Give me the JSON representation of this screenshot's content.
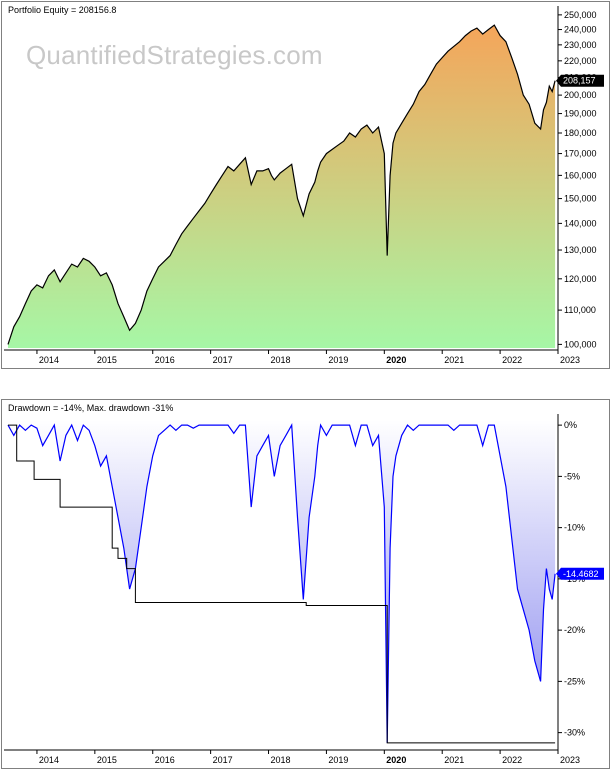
{
  "watermark": "QuantifiedStrategies.com",
  "colors": {
    "equity_line": "#000000",
    "equity_fill_top": "#f5a55a",
    "equity_fill_bottom": "#a6f7a6",
    "drawdown_line": "#0000ff",
    "drawdown_fill_top": "#ffffff",
    "drawdown_fill_bottom": "#8888ee",
    "max_dd_line": "#000000",
    "value_box_equity": "#000000",
    "value_box_dd": "#0000ff"
  },
  "chart_data": [
    {
      "type": "area",
      "title": "Portfolio Equity = 208156.8",
      "last_value_label": "208,157",
      "y_tick_labels": [
        "100,000",
        "110,000",
        "120,000",
        "130,000",
        "140,000",
        "150,000",
        "160,000",
        "170,000",
        "180,000",
        "190,000",
        "200,000",
        "210,000",
        "220,000",
        "230,000",
        "240,000",
        "250,000"
      ],
      "y_ticks": [
        100000,
        110000,
        120000,
        130000,
        140000,
        150000,
        160000,
        170000,
        180000,
        190000,
        200000,
        210000,
        220000,
        230000,
        240000,
        250000
      ],
      "x_tick_labels": [
        "2014",
        "2015",
        "2016",
        "2017",
        "2018",
        "2019",
        "2020",
        "2021",
        "2022",
        "2023"
      ],
      "x_ticks": [
        2014,
        2015,
        2016,
        2017,
        2018,
        2019,
        2020,
        2021,
        2022,
        2023
      ],
      "bold_x_label": "2020",
      "xlim": [
        2013.5,
        2023.0
      ],
      "ylim": [
        99000,
        252000
      ],
      "y_scale": "log",
      "series": [
        {
          "x": [
            2013.5,
            2013.6,
            2013.7,
            2013.8,
            2013.9,
            2014.0,
            2014.1,
            2014.2,
            2014.3,
            2014.4,
            2014.5,
            2014.6,
            2014.7,
            2014.8,
            2014.9,
            2015.0,
            2015.1,
            2015.2,
            2015.3,
            2015.4,
            2015.5,
            2015.6,
            2015.7,
            2015.8,
            2015.9,
            2016.0,
            2016.1,
            2016.2,
            2016.3,
            2016.4,
            2016.5,
            2016.6,
            2016.7,
            2016.8,
            2016.9,
            2017.0,
            2017.1,
            2017.2,
            2017.3,
            2017.4,
            2017.5,
            2017.6,
            2017.7,
            2017.8,
            2017.9,
            2018.0,
            2018.05,
            2018.1,
            2018.2,
            2018.3,
            2018.4,
            2018.5,
            2018.6,
            2018.7,
            2018.8,
            2018.85,
            2018.9,
            2019.0,
            2019.1,
            2019.2,
            2019.3,
            2019.4,
            2019.5,
            2019.6,
            2019.7,
            2019.8,
            2019.9,
            2020.0,
            2020.05,
            2020.1,
            2020.15,
            2020.2,
            2020.3,
            2020.4,
            2020.5,
            2020.6,
            2020.7,
            2020.8,
            2020.9,
            2021.0,
            2021.1,
            2021.2,
            2021.3,
            2021.4,
            2021.5,
            2021.6,
            2021.7,
            2021.8,
            2021.9,
            2022.0,
            2022.1,
            2022.2,
            2022.3,
            2022.4,
            2022.5,
            2022.6,
            2022.7,
            2022.75,
            2022.8,
            2022.85,
            2022.9,
            2022.95
          ],
          "y": [
            100000,
            105000,
            108000,
            112000,
            116000,
            118000,
            117000,
            121000,
            123000,
            119000,
            122000,
            125000,
            124000,
            127000,
            126000,
            124000,
            121000,
            122000,
            118000,
            112000,
            108000,
            104000,
            106000,
            110000,
            116000,
            120000,
            124000,
            126000,
            128000,
            132000,
            136000,
            139000,
            142000,
            145000,
            148000,
            152000,
            156000,
            160000,
            164000,
            162000,
            165000,
            168000,
            156000,
            162000,
            162000,
            163000,
            160000,
            158000,
            161000,
            163000,
            165000,
            150000,
            143000,
            152000,
            157000,
            162000,
            166000,
            170000,
            172000,
            174000,
            176000,
            180000,
            178000,
            182000,
            184000,
            180000,
            183000,
            170000,
            128000,
            160000,
            175000,
            180000,
            185000,
            190000,
            195000,
            202000,
            206000,
            212000,
            218000,
            222000,
            226000,
            229000,
            232000,
            236000,
            239000,
            241000,
            237000,
            240000,
            243000,
            236000,
            232000,
            222000,
            212000,
            200000,
            195000,
            185000,
            182000,
            192000,
            196000,
            205000,
            202000,
            208157
          ]
        }
      ]
    },
    {
      "type": "area",
      "title": "Drawdown = -14%, Max. drawdown -31%",
      "last_value_label": "-14.4682",
      "y_tick_labels": [
        "0%",
        "-5%",
        "-10%",
        "-15%",
        "-20%",
        "-25%",
        "-30%"
      ],
      "y_ticks": [
        0,
        -5,
        -10,
        -15,
        -20,
        -25,
        -30
      ],
      "x_tick_labels": [
        "2014",
        "2015",
        "2016",
        "2017",
        "2018",
        "2019",
        "2020",
        "2021",
        "2022",
        "2023"
      ],
      "x_ticks": [
        2014,
        2015,
        2016,
        2017,
        2018,
        2019,
        2020,
        2021,
        2022,
        2023
      ],
      "bold_x_label": "2020",
      "xlim": [
        2013.5,
        2023.0
      ],
      "ylim": [
        -31.5,
        0.5
      ],
      "series": [
        {
          "name": "Drawdown",
          "x": [
            2013.5,
            2013.6,
            2013.7,
            2013.8,
            2013.9,
            2014.0,
            2014.1,
            2014.2,
            2014.3,
            2014.4,
            2014.5,
            2014.6,
            2014.7,
            2014.8,
            2014.9,
            2015.0,
            2015.1,
            2015.2,
            2015.3,
            2015.4,
            2015.5,
            2015.6,
            2015.7,
            2015.8,
            2015.9,
            2016.0,
            2016.1,
            2016.2,
            2016.3,
            2016.4,
            2016.5,
            2016.6,
            2016.7,
            2016.8,
            2016.9,
            2017.0,
            2017.1,
            2017.2,
            2017.3,
            2017.4,
            2017.5,
            2017.6,
            2017.7,
            2017.8,
            2017.9,
            2018.0,
            2018.05,
            2018.1,
            2018.2,
            2018.3,
            2018.4,
            2018.5,
            2018.6,
            2018.7,
            2018.8,
            2018.85,
            2018.9,
            2019.0,
            2019.1,
            2019.2,
            2019.3,
            2019.4,
            2019.5,
            2019.6,
            2019.7,
            2019.8,
            2019.9,
            2020.0,
            2020.05,
            2020.1,
            2020.15,
            2020.2,
            2020.3,
            2020.4,
            2020.5,
            2020.6,
            2020.7,
            2020.8,
            2020.9,
            2021.0,
            2021.1,
            2021.2,
            2021.3,
            2021.4,
            2021.5,
            2021.6,
            2021.7,
            2021.8,
            2021.9,
            2022.0,
            2022.1,
            2022.2,
            2022.3,
            2022.4,
            2022.5,
            2022.6,
            2022.7,
            2022.75,
            2022.8,
            2022.85,
            2022.9,
            2022.95
          ],
          "y": [
            0,
            -1,
            0,
            -0.5,
            0,
            -0.3,
            -2,
            -1,
            0,
            -3.5,
            -1,
            0,
            -1.5,
            0,
            -0.5,
            -2,
            -4,
            -3,
            -6,
            -9,
            -12,
            -16,
            -14,
            -10,
            -6,
            -3,
            -1,
            -0.5,
            0,
            -0.5,
            0,
            0,
            -0.3,
            0,
            0,
            0,
            0,
            0,
            0,
            -0.8,
            0,
            0,
            -8,
            -3,
            -2,
            -1,
            -3,
            -5,
            -2,
            -1,
            0,
            -9,
            -17,
            -9,
            -5,
            -2,
            0,
            -1,
            0,
            0,
            0,
            0,
            -2,
            0,
            0,
            -2,
            -1,
            -8,
            -31,
            -12,
            -5,
            -3,
            -1,
            0,
            -0.5,
            0,
            0,
            0,
            0,
            0,
            0,
            -0.5,
            0,
            0,
            0,
            0,
            -2,
            0,
            0,
            -3,
            -6,
            -11,
            -16,
            -18,
            -20,
            -23,
            -25,
            -18,
            -14,
            -16,
            -17,
            -14.5
          ]
        },
        {
          "name": "Max. drawdown",
          "x": [
            2013.5,
            2013.65,
            2013.65,
            2013.95,
            2013.95,
            2014.4,
            2014.4,
            2015.3,
            2015.3,
            2015.4,
            2015.4,
            2015.55,
            2015.55,
            2015.7,
            2015.7,
            2018.65,
            2018.65,
            2020.05,
            2020.05,
            2022.95
          ],
          "y": [
            0,
            0,
            -3.5,
            -3.5,
            -5.3,
            -5.3,
            -8,
            -8,
            -12,
            -12,
            -13,
            -13,
            -14,
            -14,
            -17.3,
            -17.3,
            -17.6,
            -17.6,
            -31,
            -31
          ]
        }
      ]
    }
  ]
}
